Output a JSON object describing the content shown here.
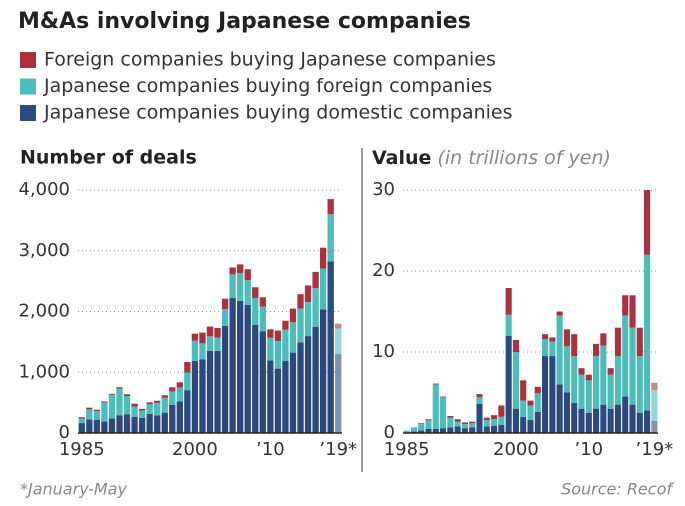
{
  "title": "M&As involving Japanese companies",
  "note": "*January-May",
  "source": "Source: Recof",
  "chart_data": [
    {
      "type": "stacked_bar",
      "title": "Number of deals",
      "categories": [
        "1985",
        null,
        null,
        null,
        null,
        null,
        null,
        null,
        null,
        null,
        null,
        null,
        null,
        null,
        null,
        "2000",
        null,
        null,
        null,
        null,
        null,
        null,
        null,
        null,
        null,
        "’10",
        null,
        null,
        null,
        null,
        null,
        null,
        null,
        null,
        "’19*"
      ],
      "series": [
        {
          "name": "Foreign companies buying Japanese companies",
          "color": "#a8323f",
          "values": [
            22,
            27,
            23,
            17,
            15,
            21,
            31,
            47,
            29,
            33,
            35,
            42,
            69,
            84,
            175,
            117,
            177,
            160,
            159,
            174,
            113,
            146,
            179,
            176,
            152,
            139,
            173,
            148,
            226,
            237,
            272,
            267,
            344,
            248,
            80
          ]
        },
        {
          "name": "Japanese companies buying foreign companies",
          "color": "#4fbcbc",
          "values": [
            75,
            164,
            142,
            315,
            390,
            440,
            297,
            168,
            119,
            156,
            204,
            244,
            223,
            232,
            288,
            330,
            266,
            240,
            217,
            273,
            390,
            454,
            409,
            445,
            406,
            373,
            454,
            515,
            499,
            557,
            561,
            635,
            672,
            777,
            420
          ]
        },
        {
          "name": "Japanese companies buying domestic companies",
          "color": "#2c4a7e",
          "values": [
            163,
            226,
            219,
            188,
            240,
            293,
            310,
            268,
            249,
            316,
            292,
            335,
            461,
            518,
            706,
            1188,
            1210,
            1352,
            1352,
            1764,
            2222,
            2175,
            2108,
            1778,
            1676,
            1195,
            1060,
            1185,
            1323,
            1491,
            1595,
            1750,
            2034,
            2825,
            1300
          ]
        }
      ],
      "ylim": [
        0,
        4000
      ],
      "yticks": [
        0,
        {
          "value": 1000,
          "label": "1,000"
        },
        {
          "value": 2000,
          "label": "2,000"
        },
        {
          "value": 3000,
          "label": "3,000"
        },
        {
          "value": 4000,
          "label": "4,000"
        }
      ],
      "grid": true
    },
    {
      "type": "stacked_bar",
      "title": "Value",
      "subtitle": "(in trillions of yen)",
      "categories": [
        "1985",
        null,
        null,
        null,
        null,
        null,
        null,
        null,
        null,
        null,
        null,
        null,
        null,
        null,
        null,
        "2000",
        null,
        null,
        null,
        null,
        null,
        null,
        null,
        null,
        null,
        "’10",
        null,
        null,
        null,
        null,
        null,
        null,
        null,
        null,
        "’19*"
      ],
      "series": [
        {
          "name": "Foreign companies buying Japanese companies",
          "color": "#a8323f",
          "values": [
            0,
            0,
            0.1,
            0.1,
            0.1,
            0.1,
            0.2,
            0.3,
            0.2,
            0.2,
            0.4,
            0.3,
            0.5,
            1.4,
            3.3,
            1.5,
            2.5,
            0.6,
            0.8,
            0.6,
            0.5,
            0.5,
            2.1,
            2.7,
            0.8,
            0.7,
            1.5,
            1.5,
            0.8,
            3.5,
            2.5,
            4.0,
            3.5,
            8.0,
            0.9
          ]
        },
        {
          "name": "Japanese companies buying foreign companies",
          "color": "#4fbcbc",
          "values": [
            0.2,
            0.5,
            0.8,
            1.1,
            5.5,
            3.8,
            1.2,
            0.6,
            0.5,
            0.5,
            0.8,
            0.8,
            0.8,
            1.0,
            2.6,
            7.0,
            2.0,
            1.8,
            2.3,
            2.1,
            1.8,
            8.5,
            5.7,
            5.8,
            4.2,
            4.0,
            6.5,
            7.3,
            4.2,
            6.0,
            10.0,
            9.5,
            7.0,
            19.2,
            3.8
          ]
        },
        {
          "name": "Japanese companies buying domestic companies",
          "color": "#2c4a7e",
          "values": [
            0.1,
            0.2,
            0.3,
            0.5,
            0.5,
            0.6,
            0.7,
            0.8,
            0.6,
            0.7,
            3.6,
            0.8,
            0.9,
            1.0,
            12.0,
            3.0,
            2.0,
            1.6,
            2.6,
            9.5,
            9.5,
            6.0,
            5.0,
            3.7,
            3.0,
            2.5,
            3.0,
            3.5,
            3.0,
            3.5,
            4.5,
            3.5,
            2.5,
            2.8,
            1.5
          ]
        }
      ],
      "ylim": [
        0,
        30
      ],
      "yticks": [
        0,
        10,
        20,
        30
      ],
      "grid": true
    }
  ]
}
